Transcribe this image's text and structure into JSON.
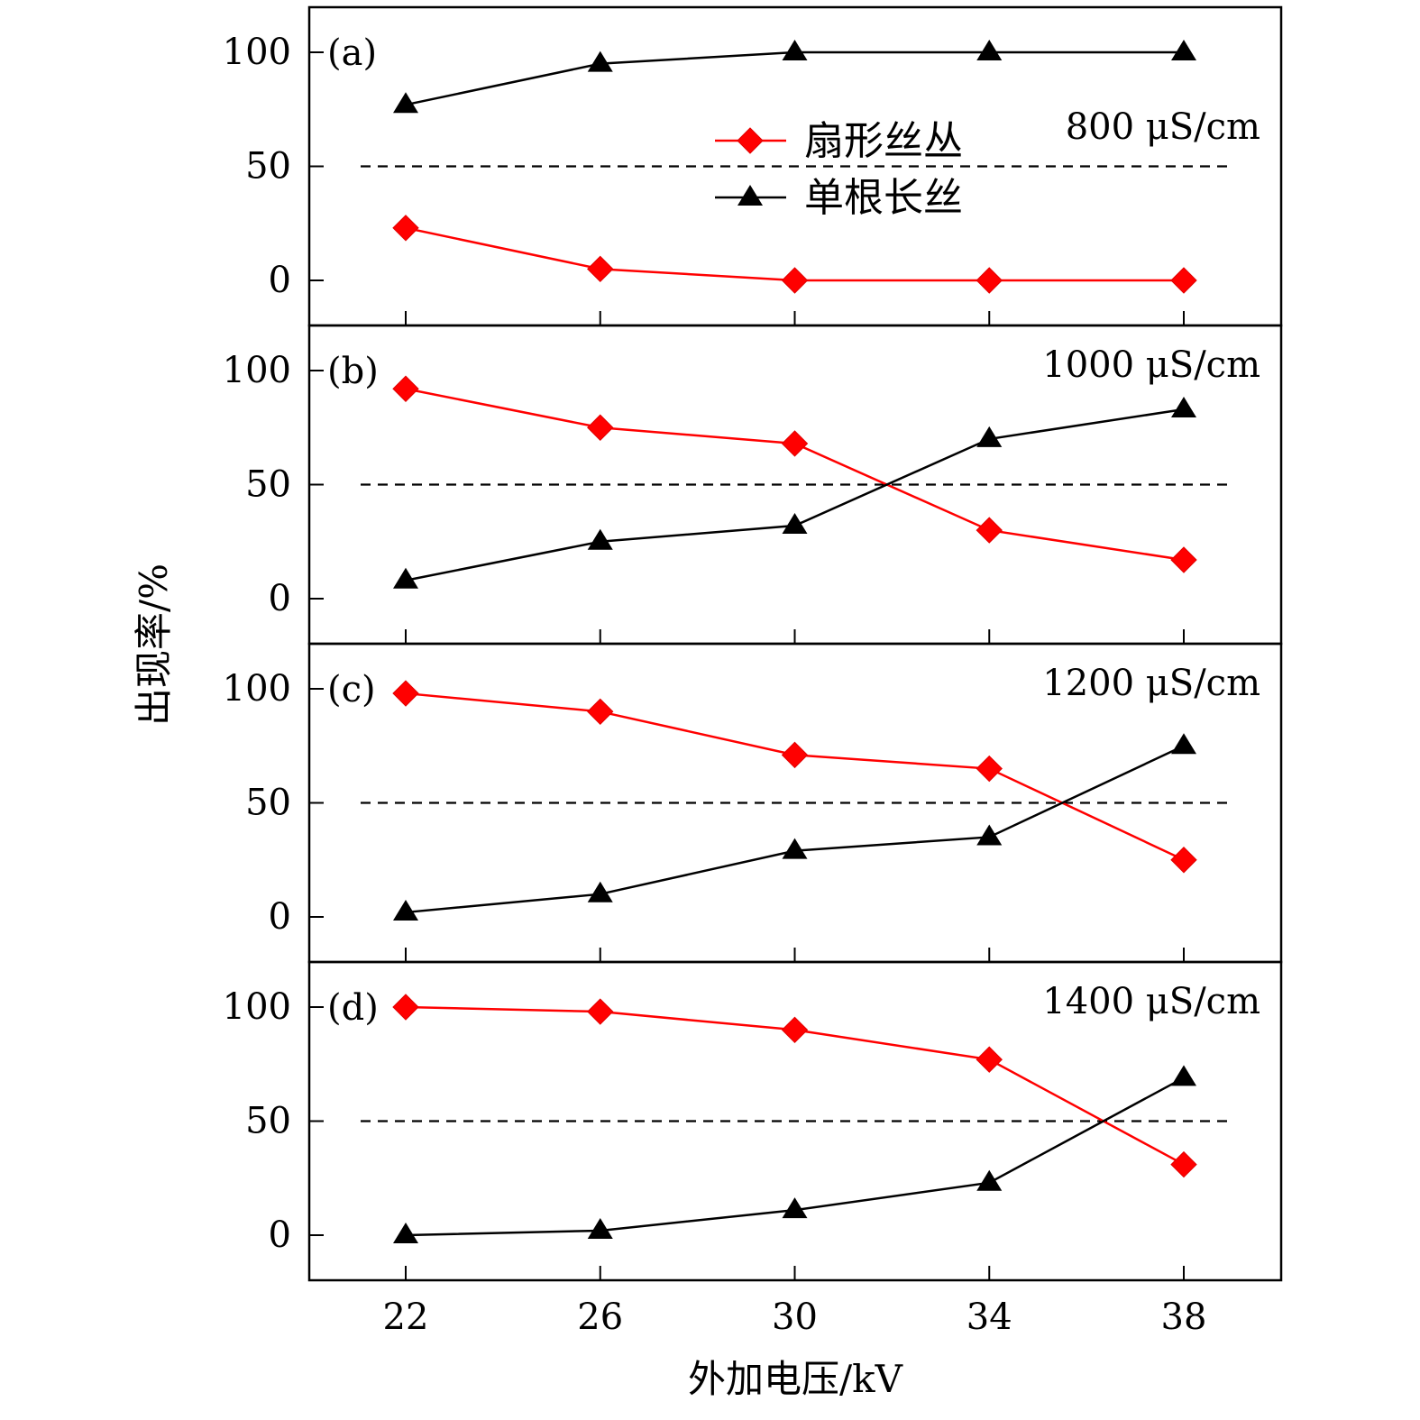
{
  "chart_data": {
    "type": "line",
    "xlabel": "外加电压/kV",
    "ylabel": "出现率/%",
    "x": [
      22,
      26,
      30,
      34,
      38
    ],
    "xticks": [
      "22",
      "26",
      "30",
      "34",
      "38"
    ],
    "yticks": [
      "0",
      "50",
      "100"
    ],
    "xlim": [
      20,
      40
    ],
    "ylim": [
      -20,
      120
    ],
    "reference_line": 50,
    "legend": {
      "placement": "top-center of panel (a)",
      "entries": [
        {
          "label": "扇形丝丛",
          "color": "#ff0000",
          "marker": "diamond"
        },
        {
          "label": "单根长丝",
          "color": "#000000",
          "marker": "triangle"
        }
      ]
    },
    "panels": [
      {
        "label": "(a)",
        "condition": "800 μS/cm",
        "series": [
          {
            "name": "扇形丝丛",
            "values": [
              23,
              5,
              0,
              0,
              0
            ]
          },
          {
            "name": "单根长丝",
            "values": [
              77,
              95,
              100,
              100,
              100
            ]
          }
        ]
      },
      {
        "label": "(b)",
        "condition": "1000 μS/cm",
        "series": [
          {
            "name": "扇形丝丛",
            "values": [
              92,
              75,
              68,
              30,
              17
            ]
          },
          {
            "name": "单根长丝",
            "values": [
              8,
              25,
              32,
              70,
              83
            ]
          }
        ]
      },
      {
        "label": "(c)",
        "condition": "1200 μS/cm",
        "series": [
          {
            "name": "扇形丝丛",
            "values": [
              98,
              90,
              71,
              65,
              25
            ]
          },
          {
            "name": "单根长丝",
            "values": [
              2,
              10,
              29,
              35,
              75
            ]
          }
        ]
      },
      {
        "label": "(d)",
        "condition": "1400 μS/cm",
        "series": [
          {
            "name": "扇形丝丛",
            "values": [
              100,
              98,
              90,
              77,
              31
            ]
          },
          {
            "name": "单根长丝",
            "values": [
              0,
              2,
              11,
              23,
              69
            ]
          }
        ]
      }
    ]
  }
}
